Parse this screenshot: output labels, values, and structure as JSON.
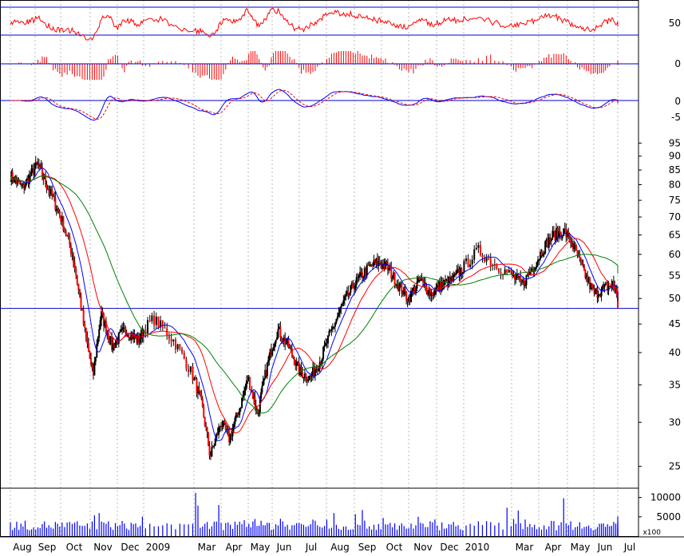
{
  "chart_data": {
    "type": "candlestick",
    "volume_unit": "x100",
    "month_labels": [
      "Aug",
      "Sep",
      "Oct",
      "Nov",
      "Dec",
      "2009",
      "Mar",
      "Apr",
      "May",
      "Jun",
      "Jul",
      "Aug",
      "Sep",
      "Oct",
      "Nov",
      "Dec",
      "2010",
      "Mar",
      "Apr",
      "May",
      "Jun",
      "Jul"
    ],
    "price_axis_ticks": [
      25,
      30,
      35,
      40,
      45,
      50,
      55,
      60,
      65,
      70,
      75,
      80,
      85,
      90,
      95
    ],
    "volume_axis_ticks": [
      5000,
      10000
    ],
    "osc1_axis_ticks": [
      50
    ],
    "osc2_axis_ticks": [
      0
    ],
    "osc3_axis_ticks": [
      0,
      -5
    ],
    "price_reference_line": 48,
    "price_range": [
      23,
      97
    ],
    "price_path": [
      {
        "m": 0,
        "v": 83
      },
      {
        "m": 0.5,
        "v": 79
      },
      {
        "m": 1.1,
        "v": 87
      },
      {
        "m": 1.5,
        "v": 79
      },
      {
        "m": 2.0,
        "v": 70
      },
      {
        "m": 2.4,
        "v": 60
      },
      {
        "m": 2.8,
        "v": 44
      },
      {
        "m": 3.1,
        "v": 36
      },
      {
        "m": 3.4,
        "v": 47
      },
      {
        "m": 3.8,
        "v": 41
      },
      {
        "m": 4.3,
        "v": 44
      },
      {
        "m": 4.8,
        "v": 42
      },
      {
        "m": 5.2,
        "v": 46
      },
      {
        "m": 5.6,
        "v": 42
      },
      {
        "m": 6.0,
        "v": 36
      },
      {
        "m": 6.3,
        "v": 32
      },
      {
        "m": 6.6,
        "v": 26
      },
      {
        "m": 7.0,
        "v": 30
      },
      {
        "m": 7.3,
        "v": 28
      },
      {
        "m": 7.7,
        "v": 32
      },
      {
        "m": 8.0,
        "v": 36
      },
      {
        "m": 8.4,
        "v": 31
      },
      {
        "m": 8.8,
        "v": 38
      },
      {
        "m": 9.2,
        "v": 44
      },
      {
        "m": 9.6,
        "v": 41
      },
      {
        "m": 10.0,
        "v": 37
      },
      {
        "m": 10.4,
        "v": 36
      },
      {
        "m": 10.8,
        "v": 39
      },
      {
        "m": 11.2,
        "v": 44
      },
      {
        "m": 11.6,
        "v": 49
      },
      {
        "m": 12.0,
        "v": 53
      },
      {
        "m": 12.4,
        "v": 56
      },
      {
        "m": 12.8,
        "v": 58
      },
      {
        "m": 13.2,
        "v": 57
      },
      {
        "m": 13.6,
        "v": 53
      },
      {
        "m": 14.0,
        "v": 50
      },
      {
        "m": 14.4,
        "v": 54
      },
      {
        "m": 14.8,
        "v": 51
      },
      {
        "m": 15.2,
        "v": 53
      },
      {
        "m": 15.6,
        "v": 54
      },
      {
        "m": 16.0,
        "v": 57
      },
      {
        "m": 16.3,
        "v": 61
      },
      {
        "m": 16.6,
        "v": 58
      },
      {
        "m": 17.0,
        "v": 55
      },
      {
        "m": 17.4,
        "v": 53
      },
      {
        "m": 17.8,
        "v": 57
      },
      {
        "m": 18.2,
        "v": 62
      },
      {
        "m": 18.5,
        "v": 65
      },
      {
        "m": 18.9,
        "v": 66
      },
      {
        "m": 19.3,
        "v": 61
      },
      {
        "m": 19.6,
        "v": 56
      },
      {
        "m": 20.0,
        "v": 51
      },
      {
        "m": 20.4,
        "v": 52
      },
      {
        "m": 20.8,
        "v": 53
      },
      {
        "m": 21.0,
        "v": 51
      },
      {
        "m": 21.3,
        "v": 48
      }
    ]
  }
}
